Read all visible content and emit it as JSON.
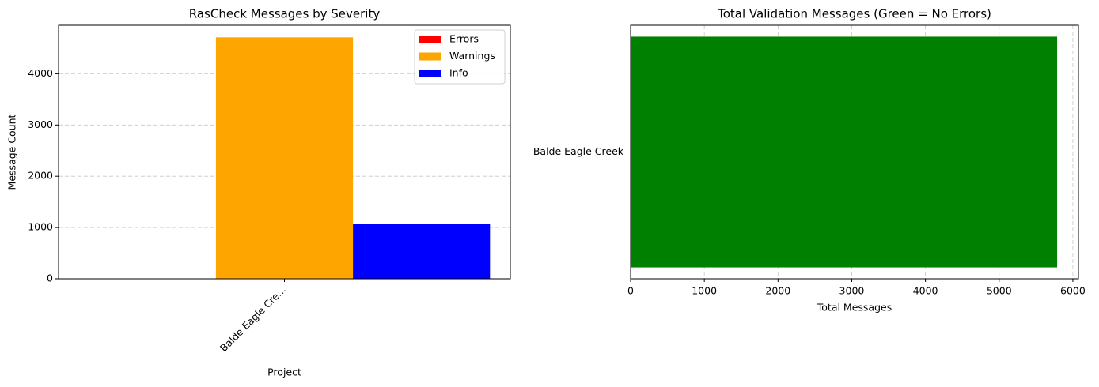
{
  "chart_data": [
    {
      "type": "bar",
      "title": "RasCheck Messages by Severity",
      "x_label": "Project",
      "y_label": "Message Count",
      "categories": [
        "Balde Eagle Cre..."
      ],
      "series": [
        {
          "name": "Errors",
          "color": "#ff0000",
          "values": [
            0
          ]
        },
        {
          "name": "Warnings",
          "color": "#ffa500",
          "values": [
            4710
          ]
        },
        {
          "name": "Info",
          "color": "#0000ff",
          "values": [
            1077
          ]
        }
      ],
      "ylim": [
        0,
        4946
      ],
      "yticks": [
        0,
        1000,
        2000,
        3000,
        4000
      ],
      "grid": true,
      "legend": "upper right"
    },
    {
      "type": "barh",
      "title": "Total Validation Messages (Green = No Errors)",
      "x_label": "Total Messages",
      "categories": [
        "Balde Eagle Creek"
      ],
      "values": [
        5787
      ],
      "color": "#008000",
      "xlim": [
        0,
        6076
      ],
      "xticks": [
        0,
        1000,
        2000,
        3000,
        4000,
        5000,
        6000
      ],
      "grid": true
    }
  ]
}
